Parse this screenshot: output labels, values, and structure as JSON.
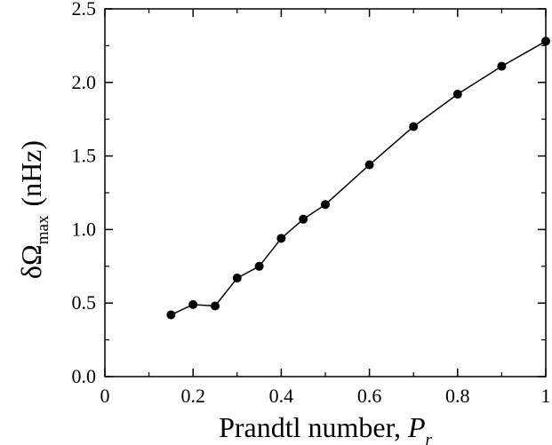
{
  "chart_data": {
    "type": "line",
    "title": "",
    "xlabel": {
      "main": "Prandtl number, ",
      "var": "P",
      "sub": "r"
    },
    "ylabel": {
      "main": "δΩ",
      "sub": "max",
      "unit": "(nHz)"
    },
    "xlim": [
      0,
      1
    ],
    "ylim": [
      0,
      2.5
    ],
    "x_ticks": [
      0,
      0.2,
      0.4,
      0.6,
      0.8,
      1
    ],
    "x_tick_labels": [
      "0",
      "0.2",
      "0.4",
      "0.6",
      "0.8",
      "1"
    ],
    "y_ticks": [
      0,
      0.5,
      1.0,
      1.5,
      2.0,
      2.5
    ],
    "y_tick_labels": [
      "0.0",
      "0.5",
      "1.0",
      "1.5",
      "2.0",
      "2.5"
    ],
    "grid": false,
    "marker": "filled-circle",
    "line_color": "#000000",
    "series": [
      {
        "x": [
          0.15,
          0.2,
          0.25,
          0.3,
          0.35,
          0.4,
          0.45,
          0.5,
          0.6,
          0.7,
          0.8,
          0.9,
          1.0
        ],
        "y": [
          0.42,
          0.49,
          0.48,
          0.67,
          0.75,
          0.94,
          1.07,
          1.17,
          1.44,
          1.7,
          1.92,
          2.11,
          2.28
        ]
      }
    ]
  }
}
